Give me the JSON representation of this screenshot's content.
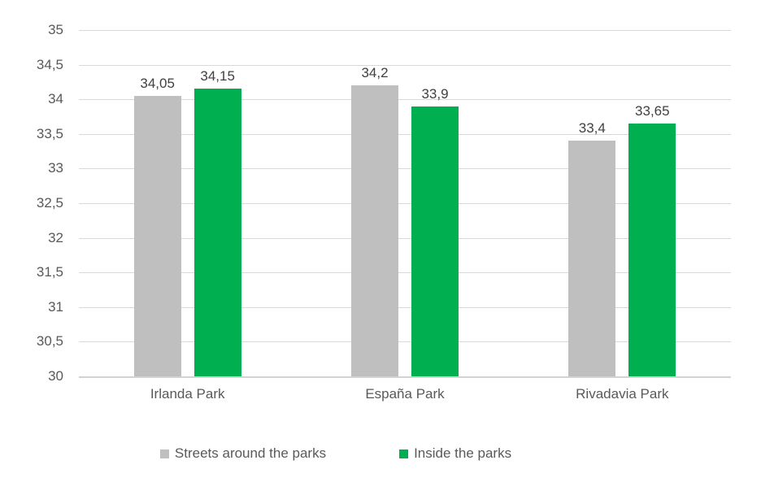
{
  "chart_data": {
    "type": "bar",
    "title": "",
    "categories": [
      "Irlanda Park",
      "España Park",
      "Rivadavia Park"
    ],
    "series": [
      {
        "name": "Streets around the parks",
        "color": "#BFBFBF",
        "values": [
          34.05,
          34.2,
          33.4
        ],
        "value_labels": [
          "34,05",
          "34,2",
          "33,4"
        ]
      },
      {
        "name": "Inside the parks",
        "color": "#00B050",
        "values": [
          34.15,
          33.9,
          33.65
        ],
        "value_labels": [
          "34,15",
          "33,9",
          "33,65"
        ]
      }
    ],
    "xlabel": "",
    "ylabel": "",
    "ylim": [
      30,
      35
    ],
    "ytick_step": 0.5,
    "ytick_labels": [
      "35",
      "34,5",
      "34",
      "33,5",
      "33",
      "32,5",
      "32",
      "31,5",
      "31",
      "30,5",
      "30"
    ],
    "grid": true,
    "legend_position": "bottom",
    "colors": {
      "gridline": "#D9D9D9",
      "axis_line": "#D2D2D2",
      "axis_text": "#595959",
      "data_label_text": "#404040",
      "background": "#FFFFFF"
    }
  }
}
